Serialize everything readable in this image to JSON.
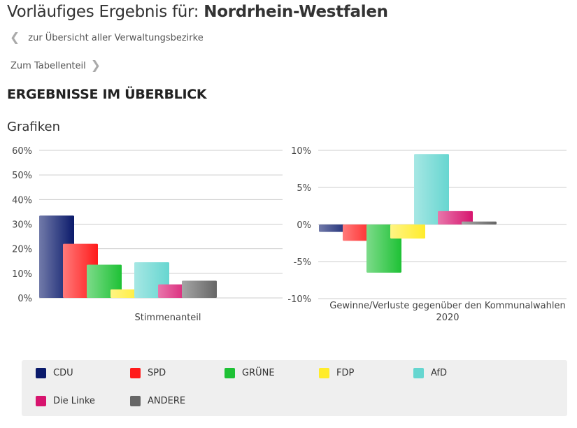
{
  "header": {
    "title_prefix": "Vorläufiges Ergebnis für: ",
    "title_region": "Nordrhein-Westfalen"
  },
  "nav": {
    "back_label": "zur Übersicht aller Verwaltungsbezirke",
    "table_label": "Zum Tabellenteil"
  },
  "section": {
    "heading": "ERGEBNISSE IM ÜBERBLICK",
    "subheading": "Grafiken"
  },
  "parties": [
    {
      "name": "CDU",
      "color": "#0a1a6b"
    },
    {
      "name": "SPD",
      "color": "#ff1a1a"
    },
    {
      "name": "GRÜNE",
      "color": "#1ec135"
    },
    {
      "name": "FDP",
      "color": "#ffec2b"
    },
    {
      "name": "AfD",
      "color": "#66d6d0"
    },
    {
      "name": "Die Linke",
      "color": "#d7146e"
    },
    {
      "name": "ANDERE",
      "color": "#666666"
    }
  ],
  "chart_data": [
    {
      "type": "bar",
      "categories": [
        "CDU",
        "SPD",
        "GRÜNE",
        "FDP",
        "AfD",
        "Die Linke",
        "ANDERE"
      ],
      "values": [
        33.5,
        22.0,
        13.5,
        3.5,
        14.5,
        5.5,
        7.0
      ],
      "xlabel": "Stimmenanteil",
      "ylim": [
        0,
        60
      ],
      "yticks": [
        "0%",
        "10%",
        "20%",
        "30%",
        "40%",
        "50%",
        "60%"
      ],
      "grid": true
    },
    {
      "type": "bar",
      "categories": [
        "CDU",
        "SPD",
        "GRÜNE",
        "FDP",
        "AfD",
        "Die Linke",
        "ANDERE"
      ],
      "values": [
        -1.0,
        -2.2,
        -6.5,
        -1.9,
        9.5,
        1.8,
        0.4
      ],
      "xlabel_lines": [
        "Gewinne/Verluste gegenüber den Kommunalwahlen",
        "2020"
      ],
      "ylim": [
        -10,
        10
      ],
      "yticks": [
        "-10%",
        "-5%",
        "0%",
        "5%",
        "10%"
      ],
      "grid": true
    }
  ]
}
